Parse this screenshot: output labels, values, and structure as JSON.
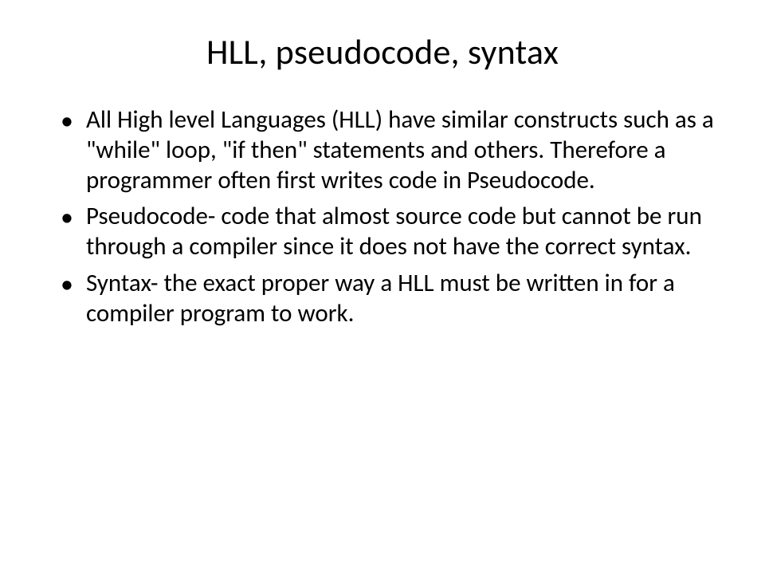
{
  "slide": {
    "title": "HLL, pseudocode, syntax",
    "title_fontsize": 44,
    "title_color": "#000000",
    "body_fontsize": 31,
    "body_color": "#000000",
    "bullet_color": "#000000",
    "background_color": "#ffffff",
    "font_family": "Calibri",
    "bullets": [
      " All High level Languages (HLL) have similar constructs such as a \"while\" loop, \"if then\" statements and others. Therefore a programmer often first writes code in Pseudocode.",
      "Pseudocode- code that almost source code but cannot be run through a compiler since  it does not have the correct syntax.",
      "Syntax- the exact proper way a HLL must be written in for a compiler program to work."
    ]
  }
}
